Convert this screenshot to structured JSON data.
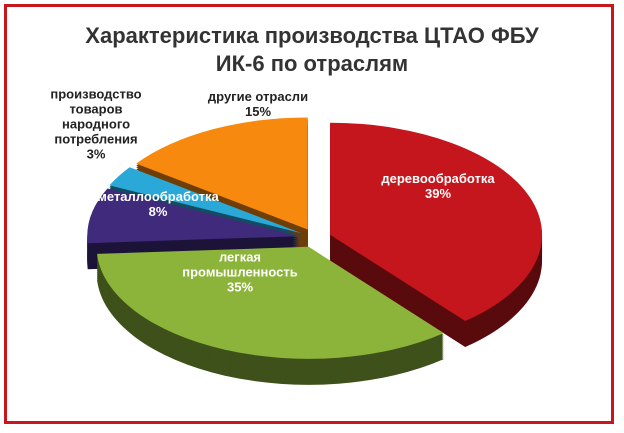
{
  "chart_data": {
    "type": "pie3d",
    "title": "Характеристика производства ЦТАО ФБУ ИК-6 по отраслям",
    "categories": [
      "деревообработка",
      "легкая промышленность",
      "металлообработка",
      "производство товаров народного потребления",
      "другие отрасли"
    ],
    "values": [
      39,
      35,
      8,
      3,
      15
    ],
    "value_labels": [
      "39%",
      "35%",
      "8%",
      "3%",
      "15%"
    ],
    "colors": [
      "#c4161c",
      "#8cb43a",
      "#3f2a7c",
      "#2aa8d8",
      "#f7890f"
    ]
  }
}
